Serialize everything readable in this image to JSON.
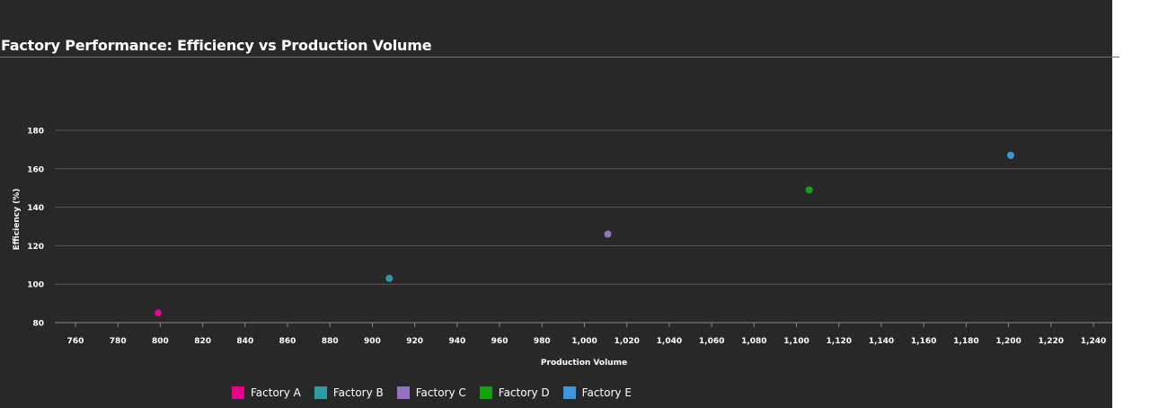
{
  "chart_data": {
    "type": "scatter",
    "title": "Factory Performance: Efficiency vs Production Volume",
    "xlabel": "Production Volume",
    "ylabel": "Efficiency (%)",
    "xlim": [
      750,
      1240
    ],
    "ylim": [
      80,
      180
    ],
    "x_ticks": [
      760,
      780,
      800,
      820,
      840,
      860,
      880,
      900,
      920,
      940,
      960,
      980,
      1000,
      1020,
      1040,
      1060,
      1080,
      1100,
      1120,
      1140,
      1160,
      1180,
      1200,
      1220,
      1240
    ],
    "x_tick_labels": [
      "760",
      "780",
      "800",
      "820",
      "840",
      "860",
      "880",
      "900",
      "920",
      "940",
      "960",
      "980",
      "1,000",
      "1,020",
      "1,040",
      "1,060",
      "1,080",
      "1,100",
      "1,120",
      "1,140",
      "1,160",
      "1,180",
      "1,200",
      "1,220",
      "1,240"
    ],
    "y_ticks": [
      80,
      100,
      120,
      140,
      160,
      180
    ],
    "y_tick_labels": [
      "80",
      "100",
      "120",
      "140",
      "160",
      "180"
    ],
    "grid": "horizontal",
    "legend_position": "bottom",
    "series": [
      {
        "name": "Factory A",
        "color": "#e3008c",
        "points": [
          {
            "x": 799,
            "y": 85
          }
        ]
      },
      {
        "name": "Factory B",
        "color": "#2d9da5",
        "points": [
          {
            "x": 908,
            "y": 103
          }
        ]
      },
      {
        "name": "Factory C",
        "color": "#9073c0",
        "points": [
          {
            "x": 1011,
            "y": 126
          }
        ]
      },
      {
        "name": "Factory D",
        "color": "#13a10e",
        "points": [
          {
            "x": 1106,
            "y": 149
          }
        ]
      },
      {
        "name": "Factory E",
        "color": "#3a96dd",
        "points": [
          {
            "x": 1201,
            "y": 167
          }
        ]
      }
    ]
  }
}
